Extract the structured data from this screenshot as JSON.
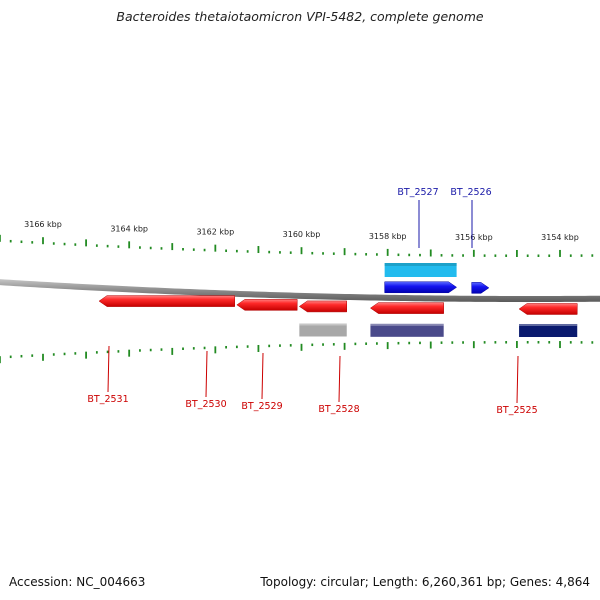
{
  "title": "Bacteroides thetaiotaomicron VPI-5482, complete genome",
  "accession": "Accession: NC_004663",
  "topology": "Topology: circular; Length: 6,260,361 bp; Genes: 4,864",
  "scale": {
    "unit": "kbp",
    "labels": [
      {
        "kbp": 3166,
        "text": "3166 kbp"
      },
      {
        "kbp": 3164,
        "text": "3164 kbp"
      },
      {
        "kbp": 3162,
        "text": "3162 kbp"
      },
      {
        "kbp": 3160,
        "text": "3160 kbp"
      },
      {
        "kbp": 3158,
        "text": "3158 kbp"
      },
      {
        "kbp": 3156,
        "text": "3156 kbp"
      },
      {
        "kbp": 3154,
        "text": "3154 kbp"
      }
    ]
  },
  "genes_forward": [
    {
      "name": "BT_2527",
      "start_kbp": 3158.07,
      "end_kbp": 3156.4,
      "color": "#1010ee",
      "box_color": "#22bbee",
      "label_color": "#1a1aa8"
    },
    {
      "name": "BT_2526",
      "start_kbp": 3156.05,
      "end_kbp": 3155.65,
      "color": "#1010ee",
      "box_color": null,
      "label_color": "#1a1aa8"
    }
  ],
  "genes_reverse": [
    {
      "name": "BT_2531",
      "start_kbp": 3164.7,
      "end_kbp": 3161.55,
      "color": "#ee1111",
      "box_color": null,
      "label_color": "#cc0000"
    },
    {
      "name": "BT_2530",
      "start_kbp": 3161.5,
      "end_kbp": 3160.1,
      "color": "#ee1111",
      "box_color": null,
      "label_color": "#cc0000"
    },
    {
      "name": "BT_2529",
      "start_kbp": 3160.05,
      "end_kbp": 3158.95,
      "color": "#ee1111",
      "box_color": "#a8a8a8",
      "label_color": "#cc0000"
    },
    {
      "name": "BT_2528",
      "start_kbp": 3158.4,
      "end_kbp": 3156.7,
      "color": "#ee1111",
      "box_color": "#4a4a8a",
      "label_color": "#cc0000"
    },
    {
      "name": "BT_2525",
      "start_kbp": 3154.95,
      "end_kbp": 3153.6,
      "color": "#ee1111",
      "box_color": "#0a1a6e",
      "label_color": "#cc0000"
    }
  ],
  "colors": {
    "backbone": "#8a8a8a",
    "ticks": "#228b22"
  }
}
